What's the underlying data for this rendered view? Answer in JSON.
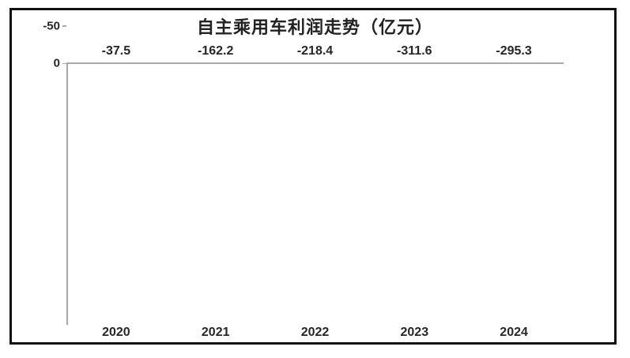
{
  "chart_data": {
    "type": "bar",
    "title": "自主乘用车利润走势（亿元）",
    "categories": [
      "2020",
      "2021",
      "2022",
      "2023",
      "2024"
    ],
    "values": [
      -37.5,
      -162.2,
      -218.4,
      -311.6,
      -295.3
    ],
    "value_labels": [
      "-37.5",
      "-162.2",
      "-218.4",
      "-311.6",
      "-295.3"
    ],
    "xlabel": "",
    "ylabel": "",
    "ylim": [
      -350,
      0
    ],
    "y_ticks": [
      0,
      -50,
      -100,
      -150,
      -200,
      -250,
      -300,
      -350
    ],
    "grid": "off",
    "legend": "none",
    "bar_color": "#3A6394",
    "axis_color": "#A8A8A8",
    "text_color": "#262626",
    "frame_color": "#111111"
  }
}
